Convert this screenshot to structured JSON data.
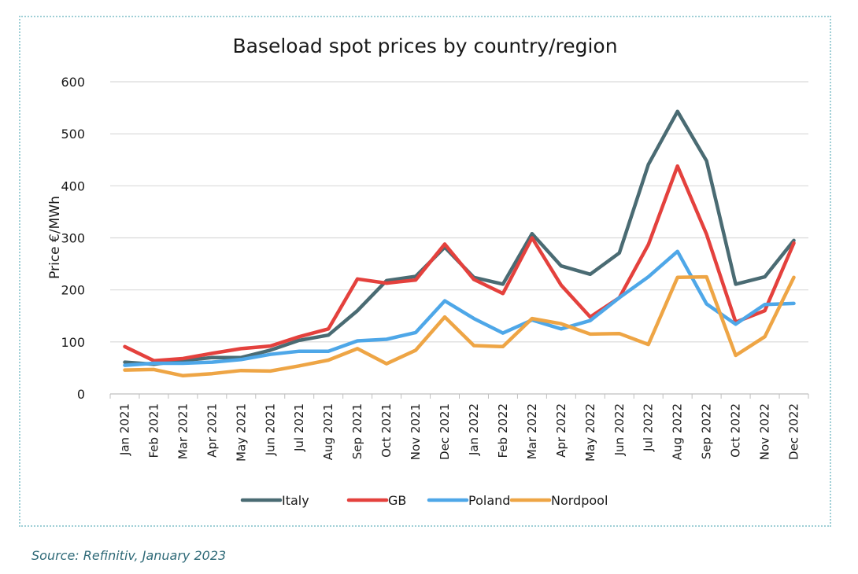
{
  "chart_data": {
    "type": "line",
    "title": "Baseload spot prices by country/region",
    "xlabel": "",
    "ylabel": "Price €/MWh",
    "ylim": [
      0,
      600
    ],
    "yticks": [
      0,
      100,
      200,
      300,
      400,
      500,
      600
    ],
    "grid": true,
    "legend": "bottom",
    "categories": [
      "Jan 2021",
      "Feb 2021",
      "Mar 2021",
      "Apr 2021",
      "May 2021",
      "Jun 2021",
      "Jul 2021",
      "Aug 2021",
      "Sep 2021",
      "Oct 2021",
      "Nov 2021",
      "Dec 2021",
      "Jan 2022",
      "Feb 2022",
      "Mar 2022",
      "Apr 2022",
      "May 2022",
      "Jun 2022",
      "Jul 2022",
      "Aug 2022",
      "Sep 2022",
      "Oct 2022",
      "Nov 2022",
      "Dec 2022"
    ],
    "series": [
      {
        "name": "Italy",
        "color": "#4a6b73",
        "values": [
          61,
          57,
          64,
          70,
          70,
          84,
          103,
          113,
          160,
          218,
          226,
          282,
          224,
          211,
          308,
          246,
          230,
          271,
          441,
          543,
          448,
          211,
          225,
          295
        ]
      },
      {
        "name": "GB",
        "color": "#e4413d",
        "values": [
          91,
          64,
          68,
          78,
          87,
          92,
          110,
          125,
          221,
          213,
          219,
          288,
          220,
          193,
          300,
          209,
          148,
          185,
          287,
          438,
          307,
          138,
          160,
          290
        ]
      },
      {
        "name": "Poland",
        "color": "#4ea7e8",
        "values": [
          55,
          59,
          59,
          61,
          66,
          76,
          82,
          82,
          102,
          105,
          118,
          179,
          145,
          117,
          142,
          125,
          141,
          185,
          225,
          274,
          173,
          134,
          172,
          174
        ]
      },
      {
        "name": "Nordpool",
        "color": "#eea545",
        "values": [
          46,
          47,
          35,
          39,
          45,
          44,
          54,
          65,
          87,
          58,
          84,
          148,
          93,
          91,
          145,
          135,
          115,
          116,
          95,
          224,
          225,
          74,
          110,
          224
        ]
      }
    ]
  },
  "source": "Source: Refinitiv, January 2023"
}
